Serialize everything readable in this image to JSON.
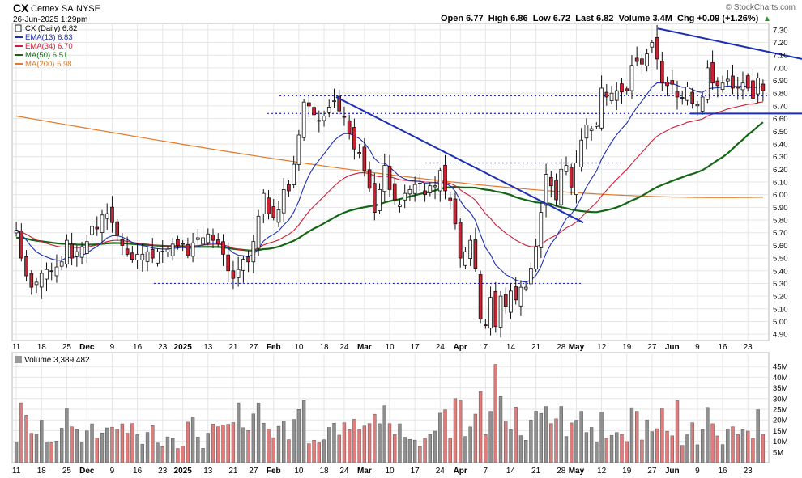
{
  "header": {
    "symbol": "CX",
    "company": "Cemex SA",
    "exchange": "NYSE",
    "date_line": "26-Jun-2025 1:29pm",
    "watermark": "© StockCharts.com",
    "quote": "Open 6.77  High 6.86  Low 6.72  Last 6.82  Volume 3.4M  Chg +0.09 (+1.26%)",
    "quote_arrow": "▲"
  },
  "legend": [
    {
      "label": "CX (Daily) 6.82",
      "color": "#222222",
      "key": "candle"
    },
    {
      "label": "EMA(13) 6.83",
      "color": "#1c2fb4",
      "key": "line"
    },
    {
      "label": "EMA(34) 6.70",
      "color": "#cc1d3a",
      "key": "line"
    },
    {
      "label": "MA(50) 6.51",
      "color": "#146614",
      "key": "line"
    },
    {
      "label": "MA(200) 5.98",
      "color": "#e07b2a",
      "key": "line"
    }
  ],
  "volume_label": "Volume 3,389,482",
  "colors": {
    "up": "#ffffff",
    "down": "#cc2233",
    "volume_up": "#909090",
    "volume_down": "#e07c7c",
    "trendline": "#1c2fb4",
    "grid": "#e6e6e6"
  },
  "chart_data": {
    "type": "candlestick",
    "symbol": "CX",
    "interval": "Daily",
    "price_ylim": [
      4.85,
      7.35
    ],
    "price_ticks": [
      "7.30",
      "7.20",
      "7.10",
      "7.00",
      "6.90",
      "6.80",
      "6.70",
      "6.60",
      "6.50",
      "6.40",
      "6.30",
      "6.20",
      "6.10",
      "6.00",
      "5.90",
      "5.80",
      "5.70",
      "5.60",
      "5.50",
      "5.40",
      "5.30",
      "5.20",
      "5.10",
      "5.00",
      "4.90"
    ],
    "volume_ylim": [
      0,
      50
    ],
    "volume_unit": "M",
    "volume_ticks": [
      "45M",
      "40M",
      "35M",
      "30M",
      "25M",
      "20M",
      "15M",
      "10M",
      "5M"
    ],
    "x_tick_labels": [
      "11",
      "18",
      "25",
      "Dec",
      "9",
      "16",
      "23",
      "2025",
      "13",
      "21",
      "27",
      "Feb",
      "10",
      "18",
      "24",
      "Mar",
      "10",
      "17",
      "24",
      "Apr",
      "7",
      "14",
      "21",
      "28",
      "May",
      "12",
      "19",
      "27",
      "Jun",
      "9",
      "16",
      "23"
    ],
    "x_tick_bold": [
      "Dec",
      "2025",
      "Feb",
      "Mar",
      "Apr",
      "May",
      "Jun"
    ],
    "closes": [
      5.72,
      5.5,
      5.36,
      5.27,
      5.31,
      5.38,
      5.41,
      5.4,
      5.43,
      5.47,
      5.64,
      5.5,
      5.55,
      5.59,
      5.63,
      5.75,
      5.73,
      5.84,
      5.85,
      5.78,
      5.68,
      5.6,
      5.53,
      5.49,
      5.53,
      5.53,
      5.55,
      5.5,
      5.55,
      5.55,
      5.57,
      5.61,
      5.6,
      5.61,
      5.52,
      5.62,
      5.66,
      5.66,
      5.69,
      5.64,
      5.61,
      5.53,
      5.4,
      5.34,
      5.41,
      5.49,
      5.47,
      5.63,
      5.83,
      6.01,
      5.85,
      5.82,
      5.88,
      6.04,
      6.03,
      6.24,
      6.47,
      6.73,
      6.7,
      6.63,
      6.58,
      6.62,
      6.69,
      6.74,
      6.66,
      6.61,
      6.48,
      6.36,
      6.32,
      6.19,
      6.05,
      5.86,
      6.04,
      6.23,
      6.04,
      5.96,
      5.92,
      6.01,
      6.04,
      6.08,
      6.09,
      6.0,
      6.07,
      6.07,
      6.19,
      6.03,
      5.95,
      5.77,
      5.5,
      5.55,
      5.64,
      5.42,
      5.02,
      4.97,
      5.19,
      4.96,
      5.2,
      5.12,
      5.24,
      5.17,
      5.27,
      5.27,
      5.42,
      5.59,
      5.86,
      6.16,
      6.07,
      5.96,
      6.2,
      6.23,
      6.06,
      6.25,
      6.43,
      6.55,
      6.52,
      6.55,
      6.84,
      6.77,
      6.8,
      6.82,
      6.81,
      6.82,
      7.02,
      7.05,
      7.03,
      7.11,
      7.2,
      7.07,
      6.88,
      6.86,
      6.87,
      6.77,
      6.76,
      6.85,
      6.72,
      6.71,
      6.77,
      7.0,
      6.88,
      6.86,
      6.88,
      6.91,
      6.84,
      6.84,
      6.88,
      6.84,
      6.76,
      6.92,
      6.82
    ],
    "series": [
      {
        "name": "CX (Daily)",
        "last": 6.82
      },
      {
        "name": "EMA(13)",
        "last": 6.83
      },
      {
        "name": "EMA(34)",
        "last": 6.7
      },
      {
        "name": "MA(50)",
        "last": 6.51
      },
      {
        "name": "MA(200)",
        "last": 5.98
      }
    ]
  }
}
